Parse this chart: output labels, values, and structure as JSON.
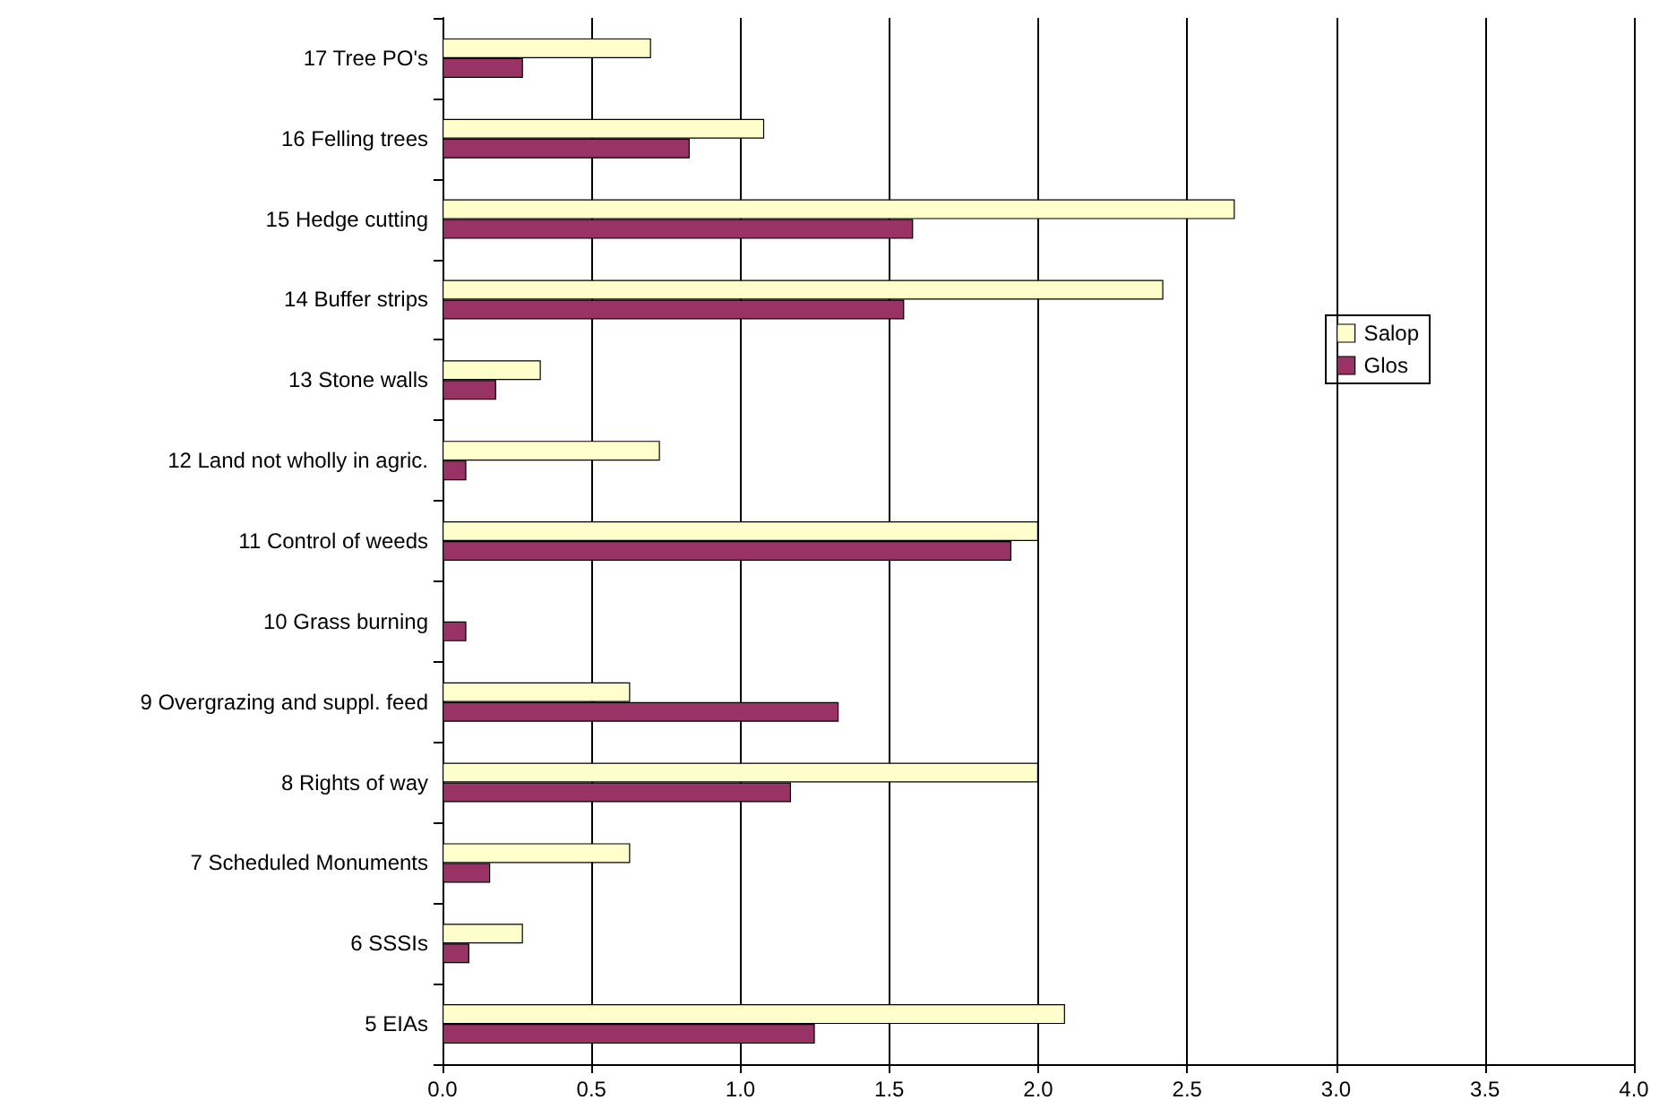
{
  "chart_data": {
    "type": "bar",
    "orientation": "horizontal",
    "categories": [
      "17 Tree PO's",
      "16 Felling trees",
      "15 Hedge cutting",
      "14 Buffer strips",
      "13 Stone walls",
      "12 Land not wholly in agric.",
      "11 Control of weeds",
      "10 Grass burning",
      "9 Overgrazing and suppl. feed",
      "8 Rights of way",
      "7 Scheduled Monuments",
      "6 SSSIs",
      "5 EIAs"
    ],
    "series": [
      {
        "name": "Salop",
        "color": "#ffffcc",
        "values": [
          0.7,
          1.08,
          2.66,
          2.42,
          0.33,
          0.73,
          2.0,
          null,
          0.63,
          2.0,
          0.63,
          0.27,
          2.09
        ]
      },
      {
        "name": "Glos",
        "color": "#993366",
        "values": [
          0.27,
          0.83,
          1.58,
          1.55,
          0.18,
          0.08,
          1.91,
          0.08,
          1.33,
          1.17,
          0.16,
          0.09,
          1.25
        ]
      }
    ],
    "xlim": [
      0,
      4
    ],
    "xticks": [
      {
        "value": 0,
        "label": "0.0"
      },
      {
        "value": 0.5,
        "label": "0.5"
      },
      {
        "value": 1,
        "label": "1.0"
      },
      {
        "value": 1.5,
        "label": "1.5"
      },
      {
        "value": 2,
        "label": "2.0"
      },
      {
        "value": 2.5,
        "label": "2.5"
      },
      {
        "value": 3,
        "label": "3.0"
      },
      {
        "value": 3.5,
        "label": "3.5"
      },
      {
        "value": 4,
        "label": "4.0"
      }
    ],
    "grid": "x",
    "legend": "right"
  }
}
